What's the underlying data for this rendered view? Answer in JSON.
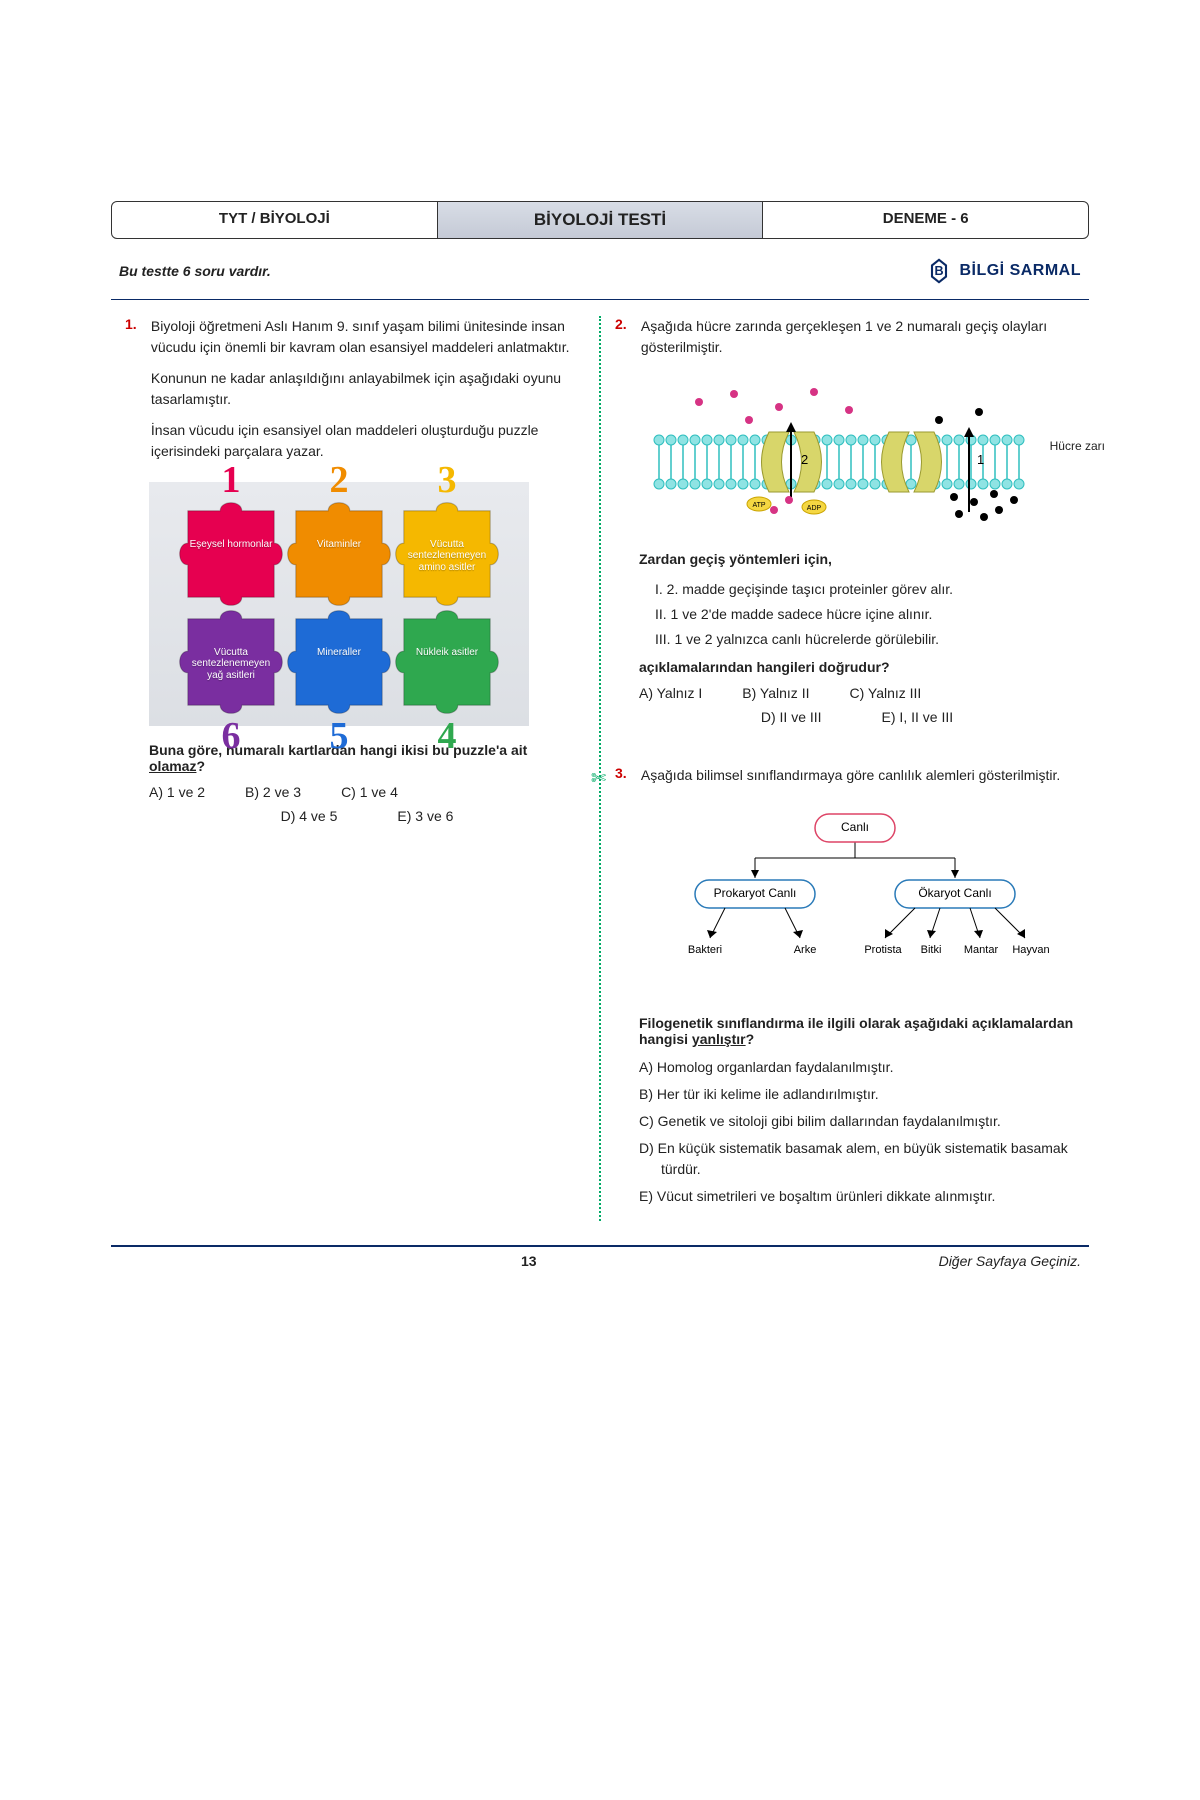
{
  "header": {
    "left": "TYT / BİYOLOJİ",
    "center": "BİYOLOJİ TESTİ",
    "right": "DENEME - 6"
  },
  "subheader": {
    "instruction": "Bu testte 6 soru vardır.",
    "brand": "BİLGİ SARMAL"
  },
  "colors": {
    "accent": "#0a2a66",
    "qnum": "#c00",
    "puzzle": [
      "#e60050",
      "#f08c00",
      "#f5b800",
      "#7a2ea0",
      "#1e6bd6",
      "#2fa84f"
    ],
    "treePink": "#f5c6d6",
    "treeBlue": "#a7d3f0",
    "membraneTeal": "#2fbfbf",
    "membraneYellow": "#d8d66a",
    "dotPink": "#d63384",
    "dotBlack": "#000"
  },
  "q1": {
    "num": "1.",
    "p1": "Biyoloji öğretmeni Aslı Hanım 9. sınıf yaşam bilimi ünitesinde insan vücudu için önemli bir kavram olan esansiyel maddeleri anlatmaktır.",
    "p2": "Konunun ne kadar anlaşıldığını anlayabilmek için aşağıdaki oyunu tasarlamıştır.",
    "p3": "İnsan vücudu için esansiyel olan maddeleri oluşturduğu puzzle içerisindeki parçalara yazar.",
    "puzzle": {
      "topNums": [
        "1",
        "2",
        "3"
      ],
      "botNums": [
        "6",
        "5",
        "4"
      ],
      "labels": [
        "Eşeysel hormonlar",
        "Vitaminler",
        "Vücutta sentezlenemeyen amino asitler",
        "Vücutta sentezlenemeyen yağ asitleri",
        "Mineraller",
        "Nükleik asitler"
      ]
    },
    "ask": "Buna göre, numaralı kartlardan hangi ikisi bu puzzle'a ait ",
    "askUnder": "olamaz",
    "askTail": "?",
    "opts": [
      "A) 1 ve 2",
      "B) 2 ve 3",
      "C) 1 ve 4",
      "D) 4 ve 5",
      "E) 3 ve 6"
    ]
  },
  "q2": {
    "num": "2.",
    "p1": "Aşağıda hücre zarında gerçekleşen 1 ve 2 numaralı geçiş olayları gösterilmiştir.",
    "membLabel": "Hücre zarı",
    "heading": "Zardan geçiş yöntemleri için,",
    "romans": [
      "I.   2. madde geçişinde taşıcı proteinler görev alır.",
      "II.  1 ve 2'de madde sadece hücre içine alınır.",
      "III. 1 ve 2 yalnızca canlı hücrelerde görülebilir."
    ],
    "ask": "açıklamalarından hangileri doğrudur?",
    "opts": [
      "A) Yalnız I",
      "B) Yalnız II",
      "C) Yalnız III",
      "D) II ve III",
      "E) I, II ve III"
    ]
  },
  "q3": {
    "num": "3.",
    "p1": "Aşağıda bilimsel sınıflandırmaya göre canlılık alemleri gösterilmiştir.",
    "tree": {
      "root": "Canlı",
      "mid": [
        "Prokaryot Canlı",
        "Ökaryot Canlı"
      ],
      "leaves": [
        [
          "Bakteri",
          "Arke"
        ],
        [
          "Protista",
          "Bitki",
          "Mantar",
          "Hayvan"
        ]
      ]
    },
    "ask1": "Filogenetik sınıflandırma ile ilgili olarak aşağıdaki açıklamalardan hangisi ",
    "askUnder": "yanlıştır",
    "askTail": "?",
    "opts": [
      "A)  Homolog organlardan faydalanılmıştır.",
      "B)  Her tür iki kelime ile adlandırılmıştır.",
      "C)  Genetik ve sitoloji gibi bilim dallarından faydalanılmıştır.",
      "D)  En küçük sistematik basamak alem, en büyük sistematik basamak türdür.",
      "E)  Vücut simetrileri ve boşaltım ürünleri dikkate alınmıştır."
    ]
  },
  "footer": {
    "page": "13",
    "note": "Diğer Sayfaya Geçiniz."
  }
}
